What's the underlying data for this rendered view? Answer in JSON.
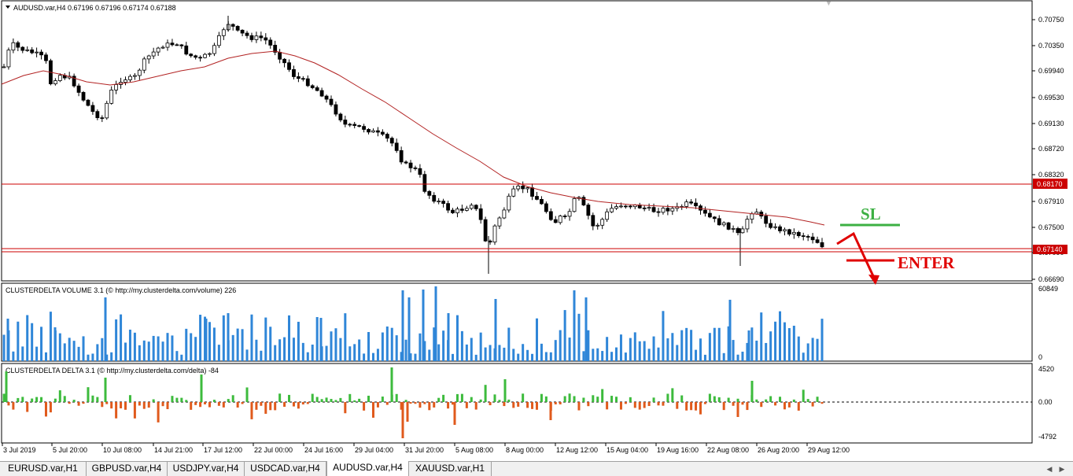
{
  "main_panel": {
    "caption": "AUDUSD.var,H4  0.67196 0.67196 0.67174 0.67188",
    "price_ticks": [
      "0.70750",
      "0.70350",
      "0.69940",
      "0.69530",
      "0.69130",
      "0.68720",
      "0.68320",
      "0.67910",
      "0.67500",
      "0.67090",
      "0.66690"
    ],
    "resistance_label": "0.68170",
    "current_price_label": "0.67140"
  },
  "annotations": {
    "sl_label": "SL",
    "enter_label": "ENTER",
    "sl_color": "#3cb043",
    "enter_color": "#e00000"
  },
  "volume_panel": {
    "caption": "CLUSTERDELTA VOLUME 3.1 (© http://my.clusterdelta.com/volume) 226",
    "ticks": [
      "60849",
      "0"
    ],
    "bar_color": "#2f86d8"
  },
  "delta_panel": {
    "caption": "CLUSTERDELTA DELTA 3.1 (© http://my.clusterdelta.com/delta) -84",
    "ticks": [
      "4520",
      "0.00",
      "-4792"
    ],
    "positive_color": "#3dbb3d",
    "negative_color": "#e05a1c"
  },
  "time_axis": [
    "3 Jul 2019",
    "5 Jul 20:00",
    "10 Jul 08:00",
    "14 Jul 21:00",
    "17 Jul 12:00",
    "22 Jul 00:00",
    "24 Jul 16:00",
    "29 Jul 04:00",
    "31 Jul 20:00",
    "5 Aug 08:00",
    "8 Aug 00:00",
    "12 Aug 12:00",
    "15 Aug 04:00",
    "19 Aug 16:00",
    "22 Aug 08:00",
    "26 Aug 20:00",
    "29 Aug 12:00"
  ],
  "tabs": [
    "EURUSD.var,H1",
    "GBPUSD.var,H4",
    "USDJPY.var,H4",
    "USDCAD.var,H4",
    "AUDUSD.var,H4",
    "XAUUSD.var,H1"
  ],
  "active_tab": "AUDUSD.var,H4",
  "colors": {
    "candle": "#000000",
    "ma": "#b22222",
    "hline": "#cc0000",
    "grid": "#c8c8c8"
  }
}
